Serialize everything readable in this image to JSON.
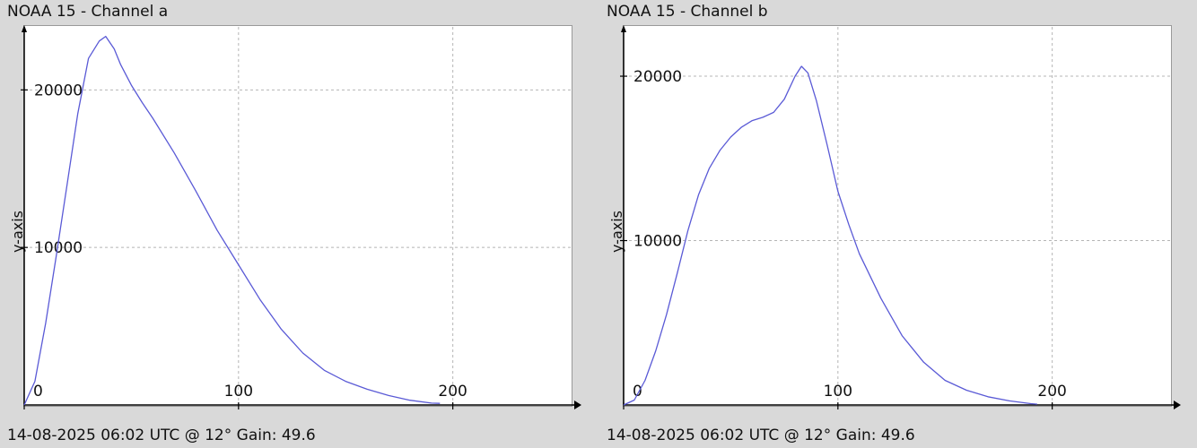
{
  "panels": [
    {
      "title": "NOAA 15 - Channel a",
      "footer": "14-08-2025 06:02 UTC @ 12° Gain: 49.6"
    },
    {
      "title": "NOAA 15 - Channel b",
      "footer": "14-08-2025 06:02 UTC @ 12° Gain: 49.6"
    }
  ],
  "colors": {
    "background": "#d9d9d9",
    "plot_background": "#ffffff",
    "grid": "#b5b5b5",
    "axis": "#000000",
    "series": "#5a5ad6"
  },
  "chart_data": [
    {
      "type": "line",
      "title": "NOAA 15 - Channel a",
      "xlabel": "",
      "ylabel": "y-axis",
      "xlim": [
        0,
        255
      ],
      "ylim": [
        0,
        24000
      ],
      "xticks": [
        0,
        100,
        200
      ],
      "yticks": [
        10000,
        20000
      ],
      "grid": true,
      "series": [
        {
          "x": [
            0,
            5,
            10,
            15,
            20,
            25,
            30,
            35,
            38,
            42,
            45,
            50,
            55,
            60,
            70,
            80,
            90,
            100,
            110,
            120,
            130,
            140,
            150,
            160,
            170,
            180,
            190,
            194
          ],
          "values": [
            0,
            1500,
            5200,
            9500,
            14000,
            18500,
            22000,
            23100,
            23400,
            22600,
            21600,
            20300,
            19200,
            18200,
            16000,
            13600,
            11100,
            8900,
            6700,
            4800,
            3300,
            2200,
            1500,
            1000,
            600,
            300,
            120,
            100
          ]
        }
      ]
    },
    {
      "type": "line",
      "title": "NOAA 15 - Channel b",
      "xlabel": "",
      "ylabel": "y-axis",
      "xlim": [
        0,
        255
      ],
      "ylim": [
        0,
        23000
      ],
      "xticks": [
        0,
        100,
        200
      ],
      "yticks": [
        10000,
        20000
      ],
      "grid": true,
      "series": [
        {
          "x": [
            0,
            5,
            10,
            15,
            20,
            25,
            30,
            35,
            40,
            45,
            50,
            55,
            60,
            65,
            70,
            75,
            80,
            83,
            86,
            90,
            95,
            100,
            105,
            110,
            120,
            130,
            140,
            150,
            160,
            170,
            180,
            190,
            193
          ],
          "values": [
            0,
            300,
            1500,
            3300,
            5500,
            8000,
            10600,
            12800,
            14400,
            15500,
            16300,
            16900,
            17300,
            17500,
            17800,
            18600,
            20000,
            20600,
            20200,
            18500,
            15800,
            13000,
            11000,
            9200,
            6500,
            4200,
            2600,
            1500,
            900,
            500,
            250,
            80,
            50
          ]
        }
      ]
    }
  ]
}
